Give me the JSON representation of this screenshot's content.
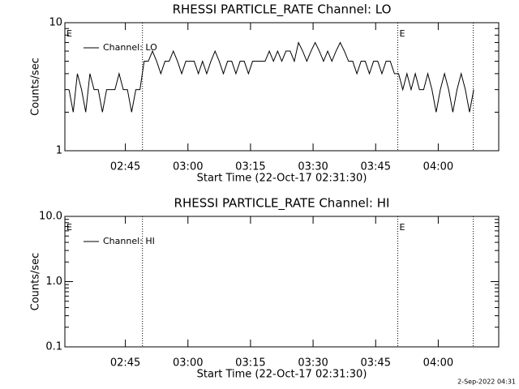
{
  "chart_data": [
    {
      "type": "line",
      "title": "RHESSI PARTICLE_RATE Channel: LO",
      "ylabel": "Counts/sec",
      "xlabel": "Start Time (22-Oct-17 02:31:30)",
      "log_y": true,
      "xlim": [
        150.5,
        254.5
      ],
      "ylim": [
        1,
        10
      ],
      "xticks": [
        {
          "value": 165,
          "label": "02:45"
        },
        {
          "value": 180,
          "label": "03:00"
        },
        {
          "value": 195,
          "label": "03:15"
        },
        {
          "value": 210,
          "label": "03:30"
        },
        {
          "value": 225,
          "label": "03:45"
        },
        {
          "value": 240,
          "label": "04:00"
        }
      ],
      "yticks": [
        1,
        10
      ],
      "yminorticks": [
        2,
        3,
        4,
        5,
        6,
        7,
        8,
        9
      ],
      "vlines": [
        169.1,
        230.3,
        248.4
      ],
      "flags": [
        {
          "label": "E",
          "x": 150.5
        },
        {
          "label": "E",
          "x": 230.3
        }
      ],
      "legend": "upper left",
      "series": [
        {
          "name": "Channel: LO",
          "color": "#000000",
          "x": [
            151.5,
            152.5,
            153.5,
            154.5,
            155.5,
            156.5,
            157.5,
            158.5,
            159.5,
            160.5,
            161.5,
            162.5,
            163.5,
            164.5,
            165.5,
            166.5,
            167.5,
            168.5,
            169.5,
            170.5,
            171.5,
            172.5,
            173.5,
            174.5,
            175.5,
            176.5,
            177.5,
            178.5,
            179.5,
            180.5,
            181.5,
            182.5,
            183.5,
            184.5,
            185.5,
            186.5,
            187.5,
            188.5,
            189.5,
            190.5,
            191.5,
            192.5,
            193.5,
            194.5,
            195.5,
            196.5,
            197.5,
            198.5,
            199.5,
            200.5,
            201.5,
            202.5,
            203.5,
            204.5,
            205.5,
            206.5,
            207.5,
            208.5,
            209.5,
            210.5,
            211.5,
            212.5,
            213.5,
            214.5,
            215.5,
            216.5,
            217.5,
            218.5,
            219.5,
            220.5,
            221.5,
            222.5,
            223.5,
            224.5,
            225.5,
            226.5,
            227.5,
            228.5,
            229.5,
            230.5,
            231.5,
            232.5,
            233.5,
            234.5,
            235.5,
            236.5,
            237.5,
            238.5,
            239.5,
            240.5,
            241.5,
            242.5,
            243.5,
            244.5,
            245.5,
            246.5,
            247.5,
            248.5
          ],
          "values": [
            3,
            2,
            4,
            3,
            2,
            4,
            3,
            3,
            2,
            3,
            3,
            3,
            4,
            3,
            3,
            2,
            3,
            3,
            5,
            5,
            6,
            5,
            4,
            5,
            5,
            6,
            5,
            4,
            5,
            5,
            5,
            4,
            5,
            4,
            5,
            6,
            5,
            4,
            5,
            5,
            4,
            5,
            5,
            4,
            5,
            5,
            5,
            5,
            6,
            5,
            6,
            5,
            6,
            6,
            5,
            7,
            6,
            5,
            6,
            7,
            6,
            5,
            6,
            5,
            6,
            7,
            6,
            5,
            5,
            4,
            5,
            5,
            4,
            5,
            5,
            4,
            5,
            5,
            4,
            4,
            3,
            4,
            3,
            4,
            3,
            3,
            4,
            3,
            2,
            3,
            4,
            3,
            2,
            3,
            4,
            3,
            2,
            3
          ]
        }
      ]
    },
    {
      "type": "line",
      "title": "RHESSI PARTICLE_RATE Channel: HI",
      "ylabel": "Counts/sec",
      "xlabel": "Start Time (22-Oct-17 02:31:30)",
      "log_y": true,
      "xlim": [
        150.5,
        254.5
      ],
      "ylim": [
        0.1,
        10
      ],
      "xticks": [
        {
          "value": 165,
          "label": "02:45"
        },
        {
          "value": 180,
          "label": "03:00"
        },
        {
          "value": 195,
          "label": "03:15"
        },
        {
          "value": 210,
          "label": "03:30"
        },
        {
          "value": 225,
          "label": "03:45"
        },
        {
          "value": 240,
          "label": "04:00"
        }
      ],
      "yticks": [
        0.1,
        {
          "value": 1,
          "label": "1.0"
        },
        {
          "value": 10,
          "label": "10.0"
        }
      ],
      "yminorticks": [
        0.2,
        0.3,
        0.4,
        0.5,
        0.6,
        0.7,
        0.8,
        0.9,
        2,
        3,
        4,
        5,
        6,
        7,
        8,
        9
      ],
      "vlines": [
        169.1,
        230.3,
        248.4
      ],
      "flags": [
        {
          "label": "E",
          "x": 150.5
        },
        {
          "label": "E",
          "x": 230.3
        }
      ],
      "legend": "upper left",
      "series": [
        {
          "name": "Channel: HI",
          "color": "#000000",
          "x": [],
          "values": []
        }
      ]
    }
  ],
  "footer": "2-Sep-2022 04:31"
}
